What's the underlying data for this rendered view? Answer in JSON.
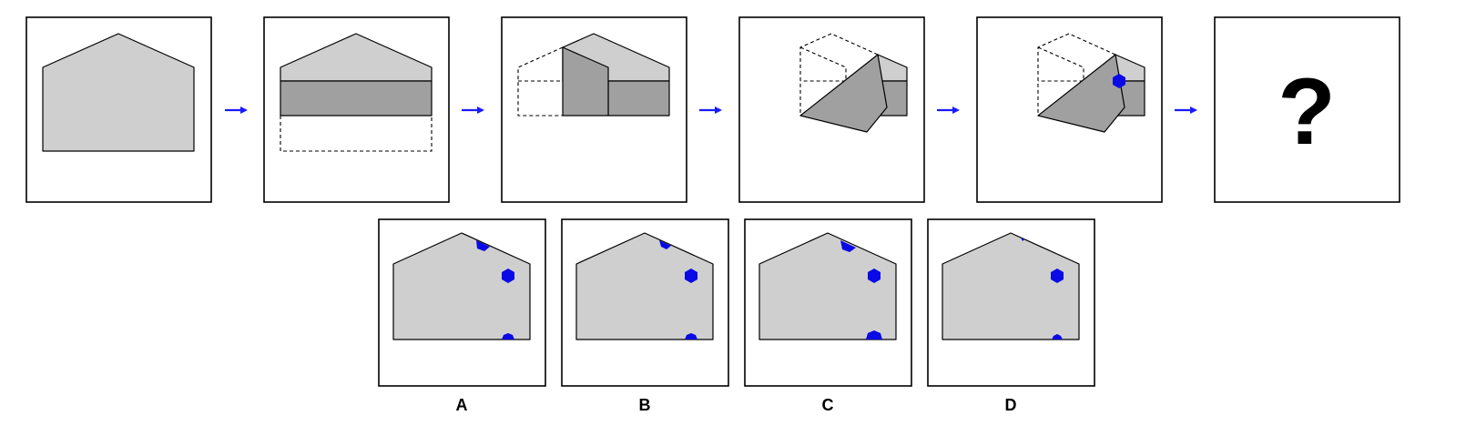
{
  "question_mark": "?",
  "options": [
    {
      "label": "A"
    },
    {
      "label": "B"
    },
    {
      "label": "C"
    },
    {
      "label": "D"
    }
  ],
  "colors": {
    "paper_light": "#cfcfcf",
    "paper_dark": "#a0a0a0",
    "hole": "#0a0ae6",
    "arrow": "#1a1aff",
    "frame": "#000000"
  },
  "icons": {
    "arrow": "right-arrow-icon",
    "hole": "hexagon-hole-icon"
  }
}
